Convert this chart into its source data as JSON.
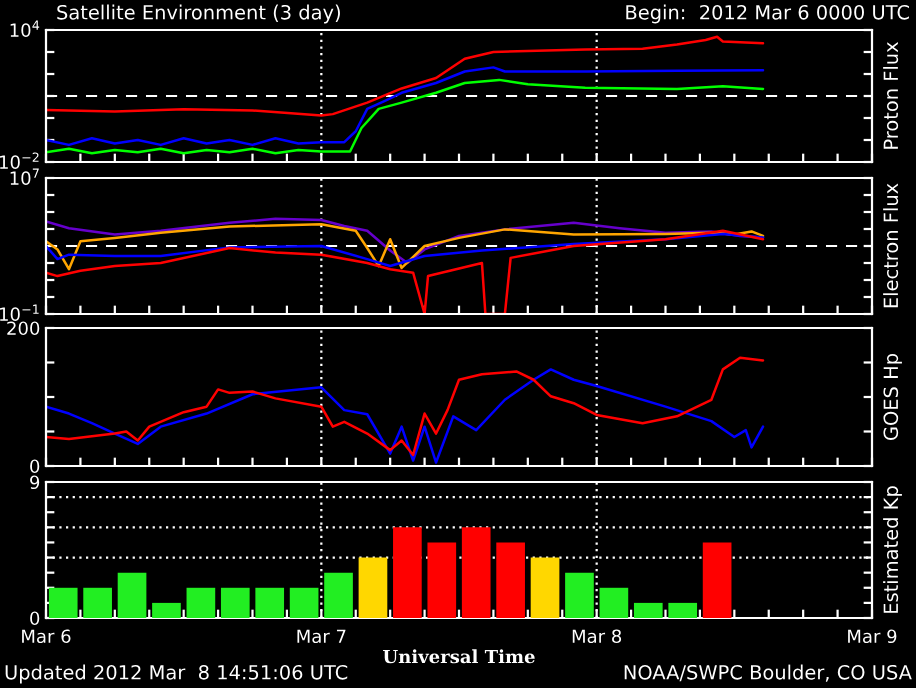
{
  "chart_data": [
    {
      "type": "line",
      "title": "Satellite Environment (3 day)",
      "subtitle": "Begin:  2012 Mar 6 0000 UTC",
      "ylabel": "Proton Flux",
      "log": "y",
      "tick_labels": "y",
      "xlim": [
        "2012-03-06T00:00",
        "2012-03-09T00:00"
      ],
      "xticks": [
        {
          "value": "2012-03-06T00:00",
          "label": null
        },
        {
          "value": "2012-03-06T03:00",
          "label": null
        },
        {
          "value": "2012-03-06T06:00",
          "label": null
        },
        {
          "value": "2012-03-06T09:00",
          "label": null
        },
        {
          "value": "2012-03-06T12:00",
          "label": null
        },
        {
          "value": "2012-03-06T15:00",
          "label": null
        },
        {
          "value": "2012-03-06T18:00",
          "label": null
        },
        {
          "value": "2012-03-06T21:00",
          "label": null
        },
        {
          "value": "2012-03-07T00:00",
          "label": null
        },
        {
          "value": "2012-03-07T03:00",
          "label": null
        },
        {
          "value": "2012-03-07T06:00",
          "label": null
        },
        {
          "value": "2012-03-07T09:00",
          "label": null
        },
        {
          "value": "2012-03-07T12:00",
          "label": null
        },
        {
          "value": "2012-03-07T15:00",
          "label": null
        },
        {
          "value": "2012-03-07T18:00",
          "label": null
        },
        {
          "value": "2012-03-07T21:00",
          "label": null
        },
        {
          "value": "2012-03-08T00:00",
          "label": null
        },
        {
          "value": "2012-03-08T03:00",
          "label": null
        },
        {
          "value": "2012-03-08T06:00",
          "label": null
        },
        {
          "value": "2012-03-08T09:00",
          "label": null
        },
        {
          "value": "2012-03-08T12:00",
          "label": null
        },
        {
          "value": "2012-03-08T15:00",
          "label": null
        },
        {
          "value": "2012-03-08T18:00",
          "label": null
        },
        {
          "value": "2012-03-08T21:00",
          "label": null
        },
        {
          "value": "2012-03-09T00:00",
          "label": null
        }
      ],
      "ylim": [
        0.01,
        10000
      ],
      "yticks": [
        {
          "value": 0.01,
          "label": "10$^{−2}$"
        },
        {
          "value": 0.1,
          "label": null
        },
        {
          "value": 1,
          "label": null
        },
        {
          "value": 10,
          "label": null
        },
        {
          "value": 100,
          "label": null
        },
        {
          "value": 1000,
          "label": null
        },
        {
          "value": 10000,
          "label": "10$^{4}$"
        }
      ],
      "ref_lines": [
        {
          "axis": "y",
          "value": 10,
          "color": "#ffffff",
          "line_style": "dashed"
        },
        {
          "axis": "x",
          "value": "2012-03-07T00:00",
          "color": "#ffffff",
          "line_style": "dotted"
        },
        {
          "axis": "x",
          "value": "2012-03-08T00:00",
          "color": "#ffffff",
          "line_style": "dotted"
        }
      ],
      "series": [
        {
          "color": "#ff0000",
          "x": [
            "2012-03-06T00:00",
            "2012-03-06T06:00",
            "2012-03-06T12:00",
            "2012-03-06T18:00",
            "2012-03-07T00:00",
            "2012-03-07T01:00",
            "2012-03-07T04:00",
            "2012-03-07T07:00",
            "2012-03-07T10:00",
            "2012-03-07T12:30",
            "2012-03-07T15:00",
            "2012-03-07T23:00",
            "2012-03-08T04:00",
            "2012-03-08T07:00",
            "2012-03-08T09:30",
            "2012-03-08T10:30",
            "2012-03-08T11:00",
            "2012-03-08T14:30"
          ],
          "values": [
            2.3,
            2.0,
            2.5,
            2.2,
            1.3,
            1.5,
            5,
            22,
            66,
            490,
            1000,
            1300,
            1400,
            2200,
            3500,
            4900,
            3000,
            2500
          ]
        },
        {
          "color": "#0000ff",
          "x": [
            "2012-03-06T00:00",
            "2012-03-06T02:00",
            "2012-03-06T04:00",
            "2012-03-06T06:00",
            "2012-03-06T08:00",
            "2012-03-06T10:00",
            "2012-03-06T12:00",
            "2012-03-06T14:00",
            "2012-03-06T16:00",
            "2012-03-06T18:00",
            "2012-03-06T20:00",
            "2012-03-06T22:00",
            "2012-03-07T00:00",
            "2012-03-07T02:00",
            "2012-03-07T03:00",
            "2012-03-07T04:00",
            "2012-03-07T05:30",
            "2012-03-07T07:00",
            "2012-03-07T10:00",
            "2012-03-07T12:30",
            "2012-03-07T15:00",
            "2012-03-07T16:00",
            "2012-03-07T23:00",
            "2012-03-08T07:00",
            "2012-03-08T14:30"
          ],
          "values": [
            0.1,
            0.06,
            0.12,
            0.07,
            0.1,
            0.06,
            0.12,
            0.07,
            0.1,
            0.06,
            0.12,
            0.07,
            0.08,
            0.08,
            0.25,
            2.6,
            5.9,
            14,
            39,
            130,
            200,
            130,
            130,
            140,
            150
          ]
        },
        {
          "color": "#00ff00",
          "x": [
            "2012-03-06T00:00",
            "2012-03-06T02:00",
            "2012-03-06T04:00",
            "2012-03-06T06:00",
            "2012-03-06T08:00",
            "2012-03-06T10:00",
            "2012-03-06T12:00",
            "2012-03-06T14:00",
            "2012-03-06T16:00",
            "2012-03-06T18:00",
            "2012-03-06T20:00",
            "2012-03-06T22:00",
            "2012-03-07T00:00",
            "2012-03-07T02:30",
            "2012-03-07T03:30",
            "2012-03-07T05:00",
            "2012-03-07T07:00",
            "2012-03-07T10:00",
            "2012-03-07T12:30",
            "2012-03-07T15:30",
            "2012-03-07T18:00",
            "2012-03-07T23:00",
            "2012-03-08T07:00",
            "2012-03-08T11:00",
            "2012-03-08T14:30"
          ],
          "values": [
            0.028,
            0.04,
            0.025,
            0.035,
            0.028,
            0.04,
            0.025,
            0.035,
            0.028,
            0.04,
            0.025,
            0.035,
            0.03,
            0.03,
            0.35,
            2.6,
            5,
            14,
            39,
            54,
            34,
            24,
            21,
            28,
            21
          ]
        }
      ]
    },
    {
      "type": "line",
      "ylabel": "Electron Flux",
      "log": "y",
      "tick_labels": "y",
      "xlim": [
        "2012-03-06T00:00",
        "2012-03-09T00:00"
      ],
      "xticks": [
        {
          "value": "2012-03-06T00:00",
          "label": null
        },
        {
          "value": "2012-03-06T03:00",
          "label": null
        },
        {
          "value": "2012-03-06T06:00",
          "label": null
        },
        {
          "value": "2012-03-06T09:00",
          "label": null
        },
        {
          "value": "2012-03-06T12:00",
          "label": null
        },
        {
          "value": "2012-03-06T15:00",
          "label": null
        },
        {
          "value": "2012-03-06T18:00",
          "label": null
        },
        {
          "value": "2012-03-06T21:00",
          "label": null
        },
        {
          "value": "2012-03-07T00:00",
          "label": null
        },
        {
          "value": "2012-03-07T03:00",
          "label": null
        },
        {
          "value": "2012-03-07T06:00",
          "label": null
        },
        {
          "value": "2012-03-07T09:00",
          "label": null
        },
        {
          "value": "2012-03-07T12:00",
          "label": null
        },
        {
          "value": "2012-03-07T15:00",
          "label": null
        },
        {
          "value": "2012-03-07T18:00",
          "label": null
        },
        {
          "value": "2012-03-07T21:00",
          "label": null
        },
        {
          "value": "2012-03-08T00:00",
          "label": null
        },
        {
          "value": "2012-03-08T03:00",
          "label": null
        },
        {
          "value": "2012-03-08T06:00",
          "label": null
        },
        {
          "value": "2012-03-08T09:00",
          "label": null
        },
        {
          "value": "2012-03-08T12:00",
          "label": null
        },
        {
          "value": "2012-03-08T15:00",
          "label": null
        },
        {
          "value": "2012-03-08T18:00",
          "label": null
        },
        {
          "value": "2012-03-08T21:00",
          "label": null
        },
        {
          "value": "2012-03-09T00:00",
          "label": null
        }
      ],
      "ylim": [
        0.1,
        10000000
      ],
      "yticks": [
        {
          "value": 0.1,
          "label": "10$^{−1}$"
        },
        {
          "value": 1,
          "label": null
        },
        {
          "value": 10,
          "label": null
        },
        {
          "value": 100,
          "label": null
        },
        {
          "value": 1000,
          "label": null
        },
        {
          "value": 10000,
          "label": null
        },
        {
          "value": 100000,
          "label": null
        },
        {
          "value": 1000000,
          "label": null
        },
        {
          "value": 10000000,
          "label": "10$^{7}$"
        }
      ],
      "ref_lines": [
        {
          "axis": "y",
          "value": 1000,
          "color": "#ffffff",
          "line_style": "dashed"
        },
        {
          "axis": "x",
          "value": "2012-03-07T00:00",
          "color": "#ffffff",
          "line_style": "dotted"
        },
        {
          "axis": "x",
          "value": "2012-03-08T00:00",
          "color": "#ffffff",
          "line_style": "dotted"
        }
      ],
      "series": [
        {
          "color": "#6600cc",
          "x": [
            "2012-03-06T00:00",
            "2012-03-06T02:00",
            "2012-03-06T06:00",
            "2012-03-06T10:00",
            "2012-03-06T16:00",
            "2012-03-06T20:00",
            "2012-03-07T00:00",
            "2012-03-07T02:00",
            "2012-03-07T04:00",
            "2012-03-07T06:00",
            "2012-03-07T07:30",
            "2012-03-07T09:00",
            "2012-03-07T12:00",
            "2012-03-07T16:00",
            "2012-03-07T22:00",
            "2012-03-08T02:00",
            "2012-03-08T06:00",
            "2012-03-08T10:00",
            "2012-03-08T12:30",
            "2012-03-08T14:30"
          ],
          "values": [
            28000,
            11000,
            4700,
            7900,
            23000,
            40000,
            34000,
            15000,
            7900,
            540,
            100,
            630,
            3900,
            9500,
            23000,
            11000,
            6000,
            7200,
            3900,
            3200
          ]
        },
        {
          "color": "#ffa500",
          "x": [
            "2012-03-06T00:00",
            "2012-03-06T01:00",
            "2012-03-06T02:00",
            "2012-03-06T03:00",
            "2012-03-06T06:00",
            "2012-03-06T10:00",
            "2012-03-06T16:00",
            "2012-03-07T00:00",
            "2012-03-07T03:00",
            "2012-03-07T04:00",
            "2012-03-07T05:00",
            "2012-03-07T06:00",
            "2012-03-07T07:00",
            "2012-03-07T09:00",
            "2012-03-07T12:00",
            "2012-03-07T16:00",
            "2012-03-07T22:00",
            "2012-03-08T06:00",
            "2012-03-08T10:00",
            "2012-03-08T12:00",
            "2012-03-08T13:30",
            "2012-03-08T14:30"
          ],
          "values": [
            1900,
            630,
            43,
            1900,
            3000,
            6000,
            14000,
            19000,
            7900,
            760,
            66,
            2500,
            51,
            1000,
            3000,
            9500,
            4700,
            5100,
            6000,
            4700,
            7200,
            3900
          ]
        },
        {
          "color": "#0000ff",
          "x": [
            "2012-03-06T00:00",
            "2012-03-06T01:00",
            "2012-03-06T02:00",
            "2012-03-06T06:00",
            "2012-03-06T10:00",
            "2012-03-06T16:00",
            "2012-03-07T00:00",
            "2012-03-07T04:00",
            "2012-03-07T06:00",
            "2012-03-07T09:00",
            "2012-03-07T14:00",
            "2012-03-07T22:00",
            "2012-03-08T06:00",
            "2012-03-08T11:00",
            "2012-03-08T14:30"
          ],
          "values": [
            1000,
            170,
            310,
            260,
            260,
            830,
            1000,
            170,
            66,
            260,
            540,
            1300,
            2500,
            5100,
            3200
          ]
        },
        {
          "color": "#ff0000",
          "x": [
            "2012-03-06T00:00",
            "2012-03-06T01:00",
            "2012-03-06T03:00",
            "2012-03-06T06:00",
            "2012-03-06T10:00",
            "2012-03-06T16:00",
            "2012-03-06T20:00",
            "2012-03-07T00:00",
            "2012-03-07T04:00",
            "2012-03-07T06:00",
            "2012-03-07T08:00",
            "2012-03-07T09:00",
            "2012-03-07T09:18",
            "2012-03-07T14:00",
            "2012-03-07T14:18",
            "2012-03-07T16:00",
            "2012-03-07T16:30",
            "2012-03-07T22:00",
            "2012-03-08T06:00",
            "2012-03-08T11:00",
            "2012-03-08T14:30"
          ],
          "values": [
            27,
            17,
            35,
            66,
            100,
            760,
            410,
            310,
            100,
            43,
            27,
            0.1,
            17,
            100,
            0.1,
            0.1,
            200,
            1000,
            2500,
            7900,
            2500
          ]
        }
      ]
    },
    {
      "type": "line",
      "ylabel": "GOES Hp",
      "tick_labels": "y",
      "xlim": [
        "2012-03-06T00:00",
        "2012-03-09T00:00"
      ],
      "xticks": [
        {
          "value": "2012-03-06T00:00",
          "label": null
        },
        {
          "value": "2012-03-06T03:00",
          "label": null
        },
        {
          "value": "2012-03-06T06:00",
          "label": null
        },
        {
          "value": "2012-03-06T09:00",
          "label": null
        },
        {
          "value": "2012-03-06T12:00",
          "label": null
        },
        {
          "value": "2012-03-06T15:00",
          "label": null
        },
        {
          "value": "2012-03-06T18:00",
          "label": null
        },
        {
          "value": "2012-03-06T21:00",
          "label": null
        },
        {
          "value": "2012-03-07T00:00",
          "label": null
        },
        {
          "value": "2012-03-07T03:00",
          "label": null
        },
        {
          "value": "2012-03-07T06:00",
          "label": null
        },
        {
          "value": "2012-03-07T09:00",
          "label": null
        },
        {
          "value": "2012-03-07T12:00",
          "label": null
        },
        {
          "value": "2012-03-07T15:00",
          "label": null
        },
        {
          "value": "2012-03-07T18:00",
          "label": null
        },
        {
          "value": "2012-03-07T21:00",
          "label": null
        },
        {
          "value": "2012-03-08T00:00",
          "label": null
        },
        {
          "value": "2012-03-08T03:00",
          "label": null
        },
        {
          "value": "2012-03-08T06:00",
          "label": null
        },
        {
          "value": "2012-03-08T09:00",
          "label": null
        },
        {
          "value": "2012-03-08T12:00",
          "label": null
        },
        {
          "value": "2012-03-08T15:00",
          "label": null
        },
        {
          "value": "2012-03-08T18:00",
          "label": null
        },
        {
          "value": "2012-03-08T21:00",
          "label": null
        },
        {
          "value": "2012-03-09T00:00",
          "label": null
        }
      ],
      "ylim": [
        0,
        200
      ],
      "yticks": [
        0,
        {
          "value": 50,
          "label": null
        },
        {
          "value": 100,
          "label": null
        },
        {
          "value": 150,
          "label": null
        },
        200
      ],
      "ref_lines": [
        {
          "axis": "x",
          "value": "2012-03-07T00:00",
          "color": "#ffffff",
          "line_style": "dotted"
        },
        {
          "axis": "x",
          "value": "2012-03-08T00:00",
          "color": "#ffffff",
          "line_style": "dotted"
        }
      ],
      "series": [
        {
          "color": "#0000ff",
          "x": [
            "2012-03-06T00:00",
            "2012-03-06T02:00",
            "2012-03-06T04:00",
            "2012-03-06T06:00",
            "2012-03-06T08:00",
            "2012-03-06T10:00",
            "2012-03-06T14:00",
            "2012-03-06T18:00",
            "2012-03-07T00:00",
            "2012-03-07T02:00",
            "2012-03-07T04:00",
            "2012-03-07T06:00",
            "2012-03-07T07:00",
            "2012-03-07T08:00",
            "2012-03-07T09:00",
            "2012-03-07T10:00",
            "2012-03-07T11:30",
            "2012-03-07T13:30",
            "2012-03-07T16:00",
            "2012-03-07T18:30",
            "2012-03-07T20:00",
            "2012-03-07T22:00",
            "2012-03-08T00:00",
            "2012-03-08T06:00",
            "2012-03-08T10:00",
            "2012-03-08T12:00",
            "2012-03-08T13:00",
            "2012-03-08T13:30",
            "2012-03-08T14:30"
          ],
          "values": [
            86,
            76,
            62,
            47,
            32,
            57,
            76,
            104,
            114,
            81,
            75,
            18,
            57,
            8,
            57,
            5,
            72,
            52,
            96,
            125,
            140,
            125,
            116,
            86,
            65,
            42,
            52,
            27,
            57
          ]
        },
        {
          "color": "#ff0000",
          "x": [
            "2012-03-06T00:00",
            "2012-03-06T02:00",
            "2012-03-06T06:00",
            "2012-03-06T07:00",
            "2012-03-06T08:00",
            "2012-03-06T09:00",
            "2012-03-06T12:00",
            "2012-03-06T14:00",
            "2012-03-06T15:00",
            "2012-03-06T16:00",
            "2012-03-06T18:00",
            "2012-03-06T20:00",
            "2012-03-07T00:00",
            "2012-03-07T01:00",
            "2012-03-07T02:00",
            "2012-03-07T04:00",
            "2012-03-07T06:00",
            "2012-03-07T07:00",
            "2012-03-07T08:00",
            "2012-03-07T09:00",
            "2012-03-07T10:00",
            "2012-03-07T11:00",
            "2012-03-07T12:00",
            "2012-03-07T14:00",
            "2012-03-07T17:00",
            "2012-03-07T18:30",
            "2012-03-07T20:00",
            "2012-03-07T22:00",
            "2012-03-08T00:00",
            "2012-03-08T04:00",
            "2012-03-08T07:00",
            "2012-03-08T10:00",
            "2012-03-08T11:00",
            "2012-03-08T12:30",
            "2012-03-08T14:30"
          ],
          "values": [
            42,
            39,
            47,
            50,
            37,
            57,
            78,
            86,
            111,
            106,
            108,
            98,
            86,
            57,
            64,
            47,
            23,
            37,
            16,
            76,
            47,
            81,
            125,
            133,
            137,
            125,
            101,
            91,
            74,
            62,
            72,
            96,
            140,
            157,
            153
          ]
        }
      ]
    },
    {
      "type": "bar",
      "ylabel": "Estimated Kp",
      "xlabel": "Universal Time",
      "annotations": [
        "Updated 2012 Mar  8 14:51:06 UTC",
        "NOAA/SWPC Boulder, CO USA"
      ],
      "xlim": [
        "2012-03-06T00:00",
        "2012-03-09T00:00"
      ],
      "xticks": [
        {
          "value": "2012-03-06T00:00",
          "label": "Mar 6"
        },
        {
          "value": "2012-03-06T03:00",
          "label": null
        },
        {
          "value": "2012-03-06T06:00",
          "label": null
        },
        {
          "value": "2012-03-06T09:00",
          "label": null
        },
        {
          "value": "2012-03-06T12:00",
          "label": null
        },
        {
          "value": "2012-03-06T15:00",
          "label": null
        },
        {
          "value": "2012-03-06T18:00",
          "label": null
        },
        {
          "value": "2012-03-06T21:00",
          "label": null
        },
        {
          "value": "2012-03-07T00:00",
          "label": "Mar 7"
        },
        {
          "value": "2012-03-07T03:00",
          "label": null
        },
        {
          "value": "2012-03-07T06:00",
          "label": null
        },
        {
          "value": "2012-03-07T09:00",
          "label": null
        },
        {
          "value": "2012-03-07T12:00",
          "label": null
        },
        {
          "value": "2012-03-07T15:00",
          "label": null
        },
        {
          "value": "2012-03-07T18:00",
          "label": null
        },
        {
          "value": "2012-03-07T21:00",
          "label": null
        },
        {
          "value": "2012-03-08T00:00",
          "label": "Mar 8"
        },
        {
          "value": "2012-03-08T03:00",
          "label": null
        },
        {
          "value": "2012-03-08T06:00",
          "label": null
        },
        {
          "value": "2012-03-08T09:00",
          "label": null
        },
        {
          "value": "2012-03-08T12:00",
          "label": null
        },
        {
          "value": "2012-03-08T15:00",
          "label": null
        },
        {
          "value": "2012-03-08T18:00",
          "label": null
        },
        {
          "value": "2012-03-08T21:00",
          "label": null
        },
        {
          "value": "2012-03-09T00:00",
          "label": "Mar 9"
        }
      ],
      "ylim": [
        0,
        9
      ],
      "yticks": [
        0,
        {
          "value": 1,
          "label": null
        },
        {
          "value": 2,
          "label": null
        },
        {
          "value": 3,
          "label": null
        },
        {
          "value": 4,
          "label": null
        },
        {
          "value": 5,
          "label": null
        },
        {
          "value": 6,
          "label": null
        },
        {
          "value": 7,
          "label": null
        },
        {
          "value": 8,
          "label": null
        },
        9
      ],
      "ref_lines": [
        {
          "axis": "y",
          "value": 4,
          "color": "#ffffff",
          "line_style": "dotted"
        },
        {
          "axis": "y",
          "value": 6,
          "color": "#ffffff",
          "line_style": "dotted"
        },
        {
          "axis": "y",
          "value": 8,
          "color": "#ffffff",
          "line_style": "dotted"
        },
        {
          "axis": "x",
          "value": "2012-03-07T00:00",
          "color": "#ffffff",
          "line_style": "dotted"
        },
        {
          "axis": "x",
          "value": "2012-03-08T00:00",
          "color": "#ffffff",
          "line_style": "dotted"
        }
      ],
      "x": [
        "2012-03-06T01:30",
        "2012-03-06T04:30",
        "2012-03-06T07:30",
        "2012-03-06T10:30",
        "2012-03-06T13:30",
        "2012-03-06T16:30",
        "2012-03-06T19:30",
        "2012-03-06T22:30",
        "2012-03-07T01:30",
        "2012-03-07T04:30",
        "2012-03-07T07:30",
        "2012-03-07T10:30",
        "2012-03-07T13:30",
        "2012-03-07T16:30",
        "2012-03-07T19:30",
        "2012-03-07T22:30",
        "2012-03-08T01:30",
        "2012-03-08T04:30",
        "2012-03-08T07:30",
        "2012-03-08T10:30"
      ],
      "values": [
        2,
        2,
        3,
        1,
        2,
        2,
        2,
        2,
        3,
        4,
        6,
        5,
        6,
        5,
        4,
        3,
        2,
        1,
        1,
        5
      ],
      "colors": [
        "#22ee22",
        "#22ee22",
        "#22ee22",
        "#22ee22",
        "#22ee22",
        "#22ee22",
        "#22ee22",
        "#22ee22",
        "#22ee22",
        "#ffd700",
        "#ff0000",
        "#ff0000",
        "#ff0000",
        "#ff0000",
        "#ffd700",
        "#22ee22",
        "#22ee22",
        "#22ee22",
        "#22ee22",
        "#ff0000"
      ]
    }
  ]
}
